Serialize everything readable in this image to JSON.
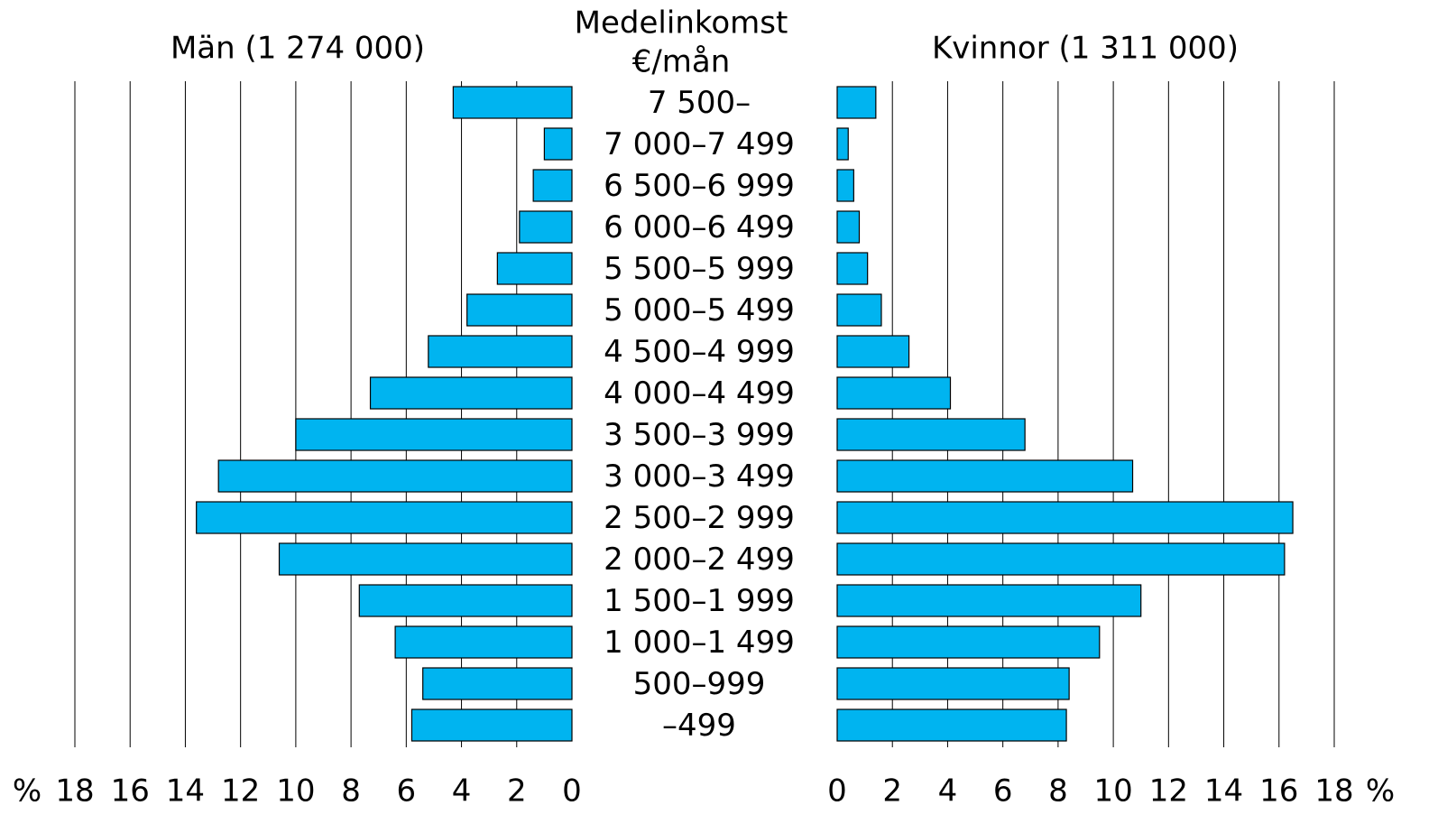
{
  "chart_data": {
    "type": "bar",
    "orientation": "horizontal",
    "title": "Medelinkomst",
    "subtitle": "€/mån",
    "x_unit": "%",
    "categories": [
      "7 500–",
      "7 000–7 499",
      "6 500–6 999",
      "6 000–6 499",
      "5 500–5 999",
      "5 000–5 499",
      "4 500–4 999",
      "4 000–4 499",
      "3 500–3 999",
      "3 000–3 499",
      "2 500–2 999",
      "2 000–2 499",
      "1 500–1 999",
      "1 000–1 499",
      "500–999",
      "–499"
    ],
    "series": [
      {
        "name": "Män (1 274 000)",
        "color": "#00b4f0",
        "values": [
          4.3,
          1.0,
          1.4,
          1.9,
          2.7,
          3.8,
          5.2,
          7.3,
          10.0,
          12.8,
          13.6,
          10.6,
          7.7,
          6.4,
          5.4,
          5.8
        ]
      },
      {
        "name": "Kvinnor (1 311 000)",
        "color": "#00b4f0",
        "values": [
          1.4,
          0.4,
          0.6,
          0.8,
          1.1,
          1.6,
          2.6,
          4.1,
          6.8,
          10.7,
          16.5,
          16.2,
          11.0,
          9.5,
          8.4,
          8.3
        ]
      }
    ],
    "xlim": [
      0,
      18
    ],
    "xticks": [
      0,
      2,
      4,
      6,
      8,
      10,
      12,
      14,
      16,
      18
    ],
    "grid": true
  }
}
